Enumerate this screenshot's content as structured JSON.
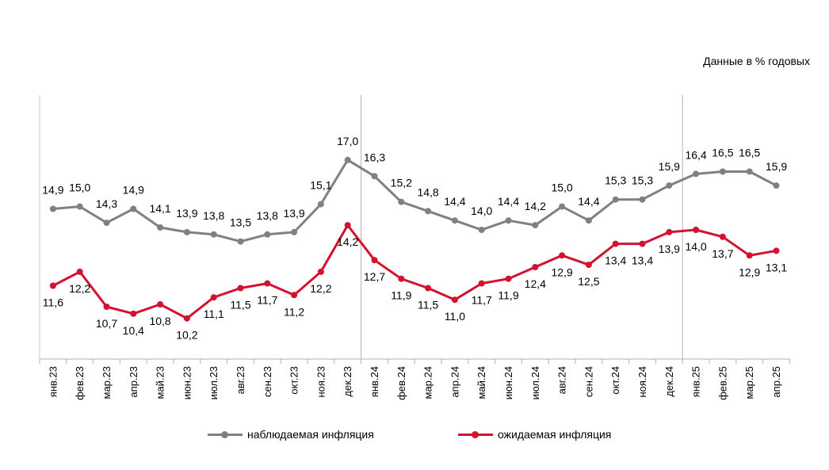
{
  "units_note": "Данные в % годовых",
  "chart_data": {
    "type": "line",
    "categories": [
      "янв.23",
      "фев.23",
      "мар.23",
      "апр.23",
      "май.23",
      "июн.23",
      "июл.23",
      "авг.23",
      "сен.23",
      "окт.23",
      "ноя.23",
      "дек.23",
      "янв.24",
      "фев.24",
      "мар.24",
      "апр.24",
      "май.24",
      "июн.24",
      "июл.24",
      "авг.24",
      "сен.24",
      "окт.24",
      "ноя.24",
      "дек.24",
      "янв.25",
      "фев.25",
      "мар.25",
      "апр.25"
    ],
    "series": [
      {
        "name": "наблюдаемая инфляция",
        "color": "#808080",
        "values": [
          14.9,
          15.0,
          14.3,
          14.9,
          14.1,
          13.9,
          13.8,
          13.5,
          13.8,
          13.9,
          15.1,
          17.0,
          16.3,
          15.2,
          14.8,
          14.4,
          14.0,
          14.4,
          14.2,
          15.0,
          14.4,
          15.3,
          15.3,
          15.9,
          16.4,
          16.5,
          16.5,
          15.9
        ],
        "labels": [
          "14,9",
          "15,0",
          "14,3",
          "14,9",
          "14,1",
          "13,9",
          "13,8",
          "13,5",
          "13,8",
          "13,9",
          "15,1",
          "17,0",
          "16,3",
          "15,2",
          "14,8",
          "14,4",
          "14,0",
          "14,4",
          "14,2",
          "15,0",
          "14,4",
          "15,3",
          "15,3",
          "15,9",
          "16,4",
          "16,5",
          "16,5",
          "15,9"
        ]
      },
      {
        "name": "ожидаемая инфляция",
        "color": "#d2122e",
        "values": [
          11.6,
          12.2,
          10.7,
          10.4,
          10.8,
          10.2,
          11.1,
          11.5,
          11.7,
          11.2,
          12.2,
          14.2,
          12.7,
          11.9,
          11.5,
          11.0,
          11.7,
          11.9,
          12.4,
          12.9,
          12.5,
          13.4,
          13.4,
          13.9,
          14.0,
          13.7,
          12.9,
          13.1
        ],
        "labels": [
          "11,6",
          "12,2",
          "10,7",
          "10,4",
          "10,8",
          "10,2",
          "11,1",
          "11,5",
          "11,7",
          "11,2",
          "12,2",
          "14,2",
          "12,7",
          "11,9",
          "11,5",
          "11,0",
          "11,7",
          "11,9",
          "12,4",
          "12,9",
          "12,5",
          "13,4",
          "13,4",
          "13,9",
          "14,0",
          "13,7",
          "12,9",
          "13,1"
        ]
      }
    ],
    "year_separators_after": [
      "дек.23",
      "дек.24"
    ],
    "grid": false,
    "legend_position": "bottom"
  }
}
